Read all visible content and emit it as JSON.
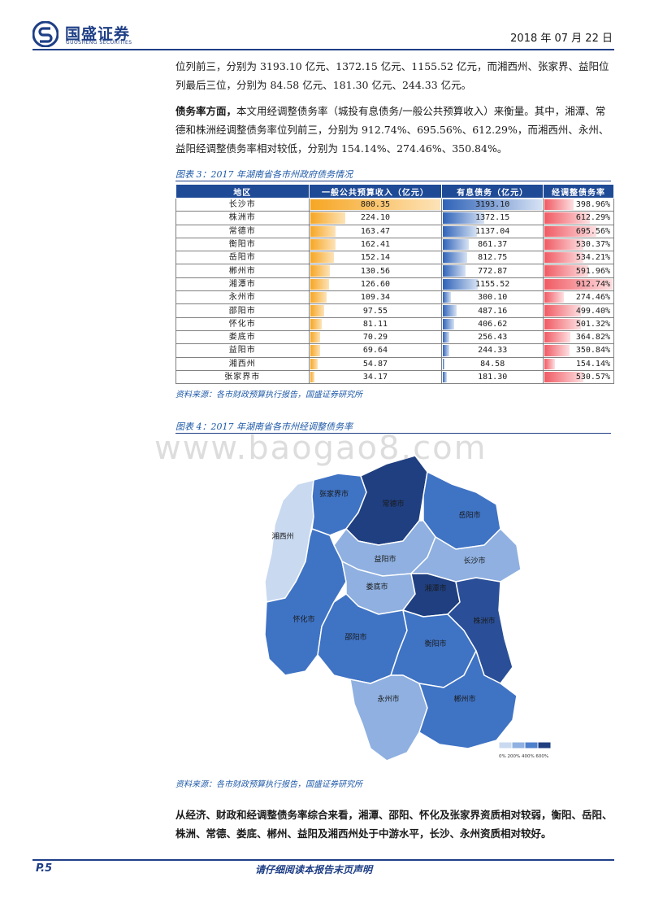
{
  "header": {
    "company_cn": "国盛证券",
    "company_en": "GUOSHENG SECURITIES",
    "date": "2018 年 07 月 22 日"
  },
  "para1": "位列前三，分别为 3193.10 亿元、1372.15 亿元、1155.52 亿元，而湘西州、张家界、益阳位列最后三位，分别为 84.58 亿元、181.30 亿元、244.33 亿元。",
  "para2": {
    "bold": "债务率方面，",
    "text": "本文用经调整债务率（城投有息债务/一般公共预算收入）来衡量。其中，湘潭、常德和株洲经调整债务率位列前三，分别为 912.74%、695.56%、612.29%，而湘西州、永州、益阳经调整债务率相对较低，分别为 154.14%、274.46%、350.84%。"
  },
  "figure3": {
    "title": "图表 3：2017 年湖南省各市州政府债务情况",
    "source": "资料来源：各市财政预算执行报告，国盛证券研究所",
    "headers": [
      "地区",
      "一般公共预算收入（亿元）",
      "有息债务（亿元）",
      "经调整债务率"
    ],
    "rows": [
      {
        "region": "长沙市",
        "income": "800.35",
        "debt": "3193.10",
        "ratio": "398.96%"
      },
      {
        "region": "株洲市",
        "income": "224.10",
        "debt": "1372.15",
        "ratio": "612.29%"
      },
      {
        "region": "常德市",
        "income": "163.47",
        "debt": "1137.04",
        "ratio": "695.56%"
      },
      {
        "region": "衡阳市",
        "income": "162.41",
        "debt": "861.37",
        "ratio": "530.37%"
      },
      {
        "region": "岳阳市",
        "income": "152.14",
        "debt": "812.75",
        "ratio": "534.21%"
      },
      {
        "region": "郴州市",
        "income": "130.56",
        "debt": "772.87",
        "ratio": "591.96%"
      },
      {
        "region": "湘潭市",
        "income": "126.60",
        "debt": "1155.52",
        "ratio": "912.74%"
      },
      {
        "region": "永州市",
        "income": "109.34",
        "debt": "300.10",
        "ratio": "274.46%"
      },
      {
        "region": "邵阳市",
        "income": "97.55",
        "debt": "487.16",
        "ratio": "499.40%"
      },
      {
        "region": "怀化市",
        "income": "81.11",
        "debt": "406.62",
        "ratio": "501.32%"
      },
      {
        "region": "娄底市",
        "income": "70.29",
        "debt": "256.43",
        "ratio": "364.82%"
      },
      {
        "region": "益阳市",
        "income": "69.64",
        "debt": "244.33",
        "ratio": "350.84%"
      },
      {
        "region": "湘西州",
        "income": "54.87",
        "debt": "84.58",
        "ratio": "154.14%"
      },
      {
        "region": "张家界市",
        "income": "34.17",
        "debt": "181.30",
        "ratio": "530.57%"
      }
    ]
  },
  "figure4": {
    "title": "图表 4：2017 年湖南省各市州经调整债务率",
    "source": "资料来源：各市财政预算执行报告，国盛证券研究所",
    "watermark": "www.baogao8.com",
    "legend_labels": "0% 200% 400% 600%",
    "legend_colors": [
      "#c9d9f0",
      "#8fb0e0",
      "#4f80cc",
      "#1f3f80"
    ],
    "regions": [
      {
        "name": "湘西州",
        "color": "#c9d9f0"
      },
      {
        "name": "张家界市",
        "color": "#3f73c4"
      },
      {
        "name": "常德市",
        "color": "#1f3f80"
      },
      {
        "name": "岳阳市",
        "color": "#3f73c4"
      },
      {
        "name": "益阳市",
        "color": "#8fb0e0"
      },
      {
        "name": "长沙市",
        "color": "#8fb0e0"
      },
      {
        "name": "怀化市",
        "color": "#3f73c4"
      },
      {
        "name": "娄底市",
        "color": "#8fb0e0"
      },
      {
        "name": "湘潭市",
        "color": "#1f3f80"
      },
      {
        "name": "株洲市",
        "color": "#2a4f98"
      },
      {
        "name": "邵阳市",
        "color": "#3f73c4"
      },
      {
        "name": "衡阳市",
        "color": "#3f73c4"
      },
      {
        "name": "永州市",
        "color": "#8fb0e0"
      },
      {
        "name": "郴州市",
        "color": "#3f73c4"
      }
    ]
  },
  "para3": "从经济、财政和经调整债务率综合来看，湘潭、邵阳、怀化及张家界资质相对较弱，衡阳、岳阳、株洲、常德、娄底、郴州、益阳及湘西州处于中游水平，长沙、永州资质相对较好。",
  "footer": {
    "page": "P.5",
    "disclaimer": "请仔细阅读本报告末页声明"
  }
}
